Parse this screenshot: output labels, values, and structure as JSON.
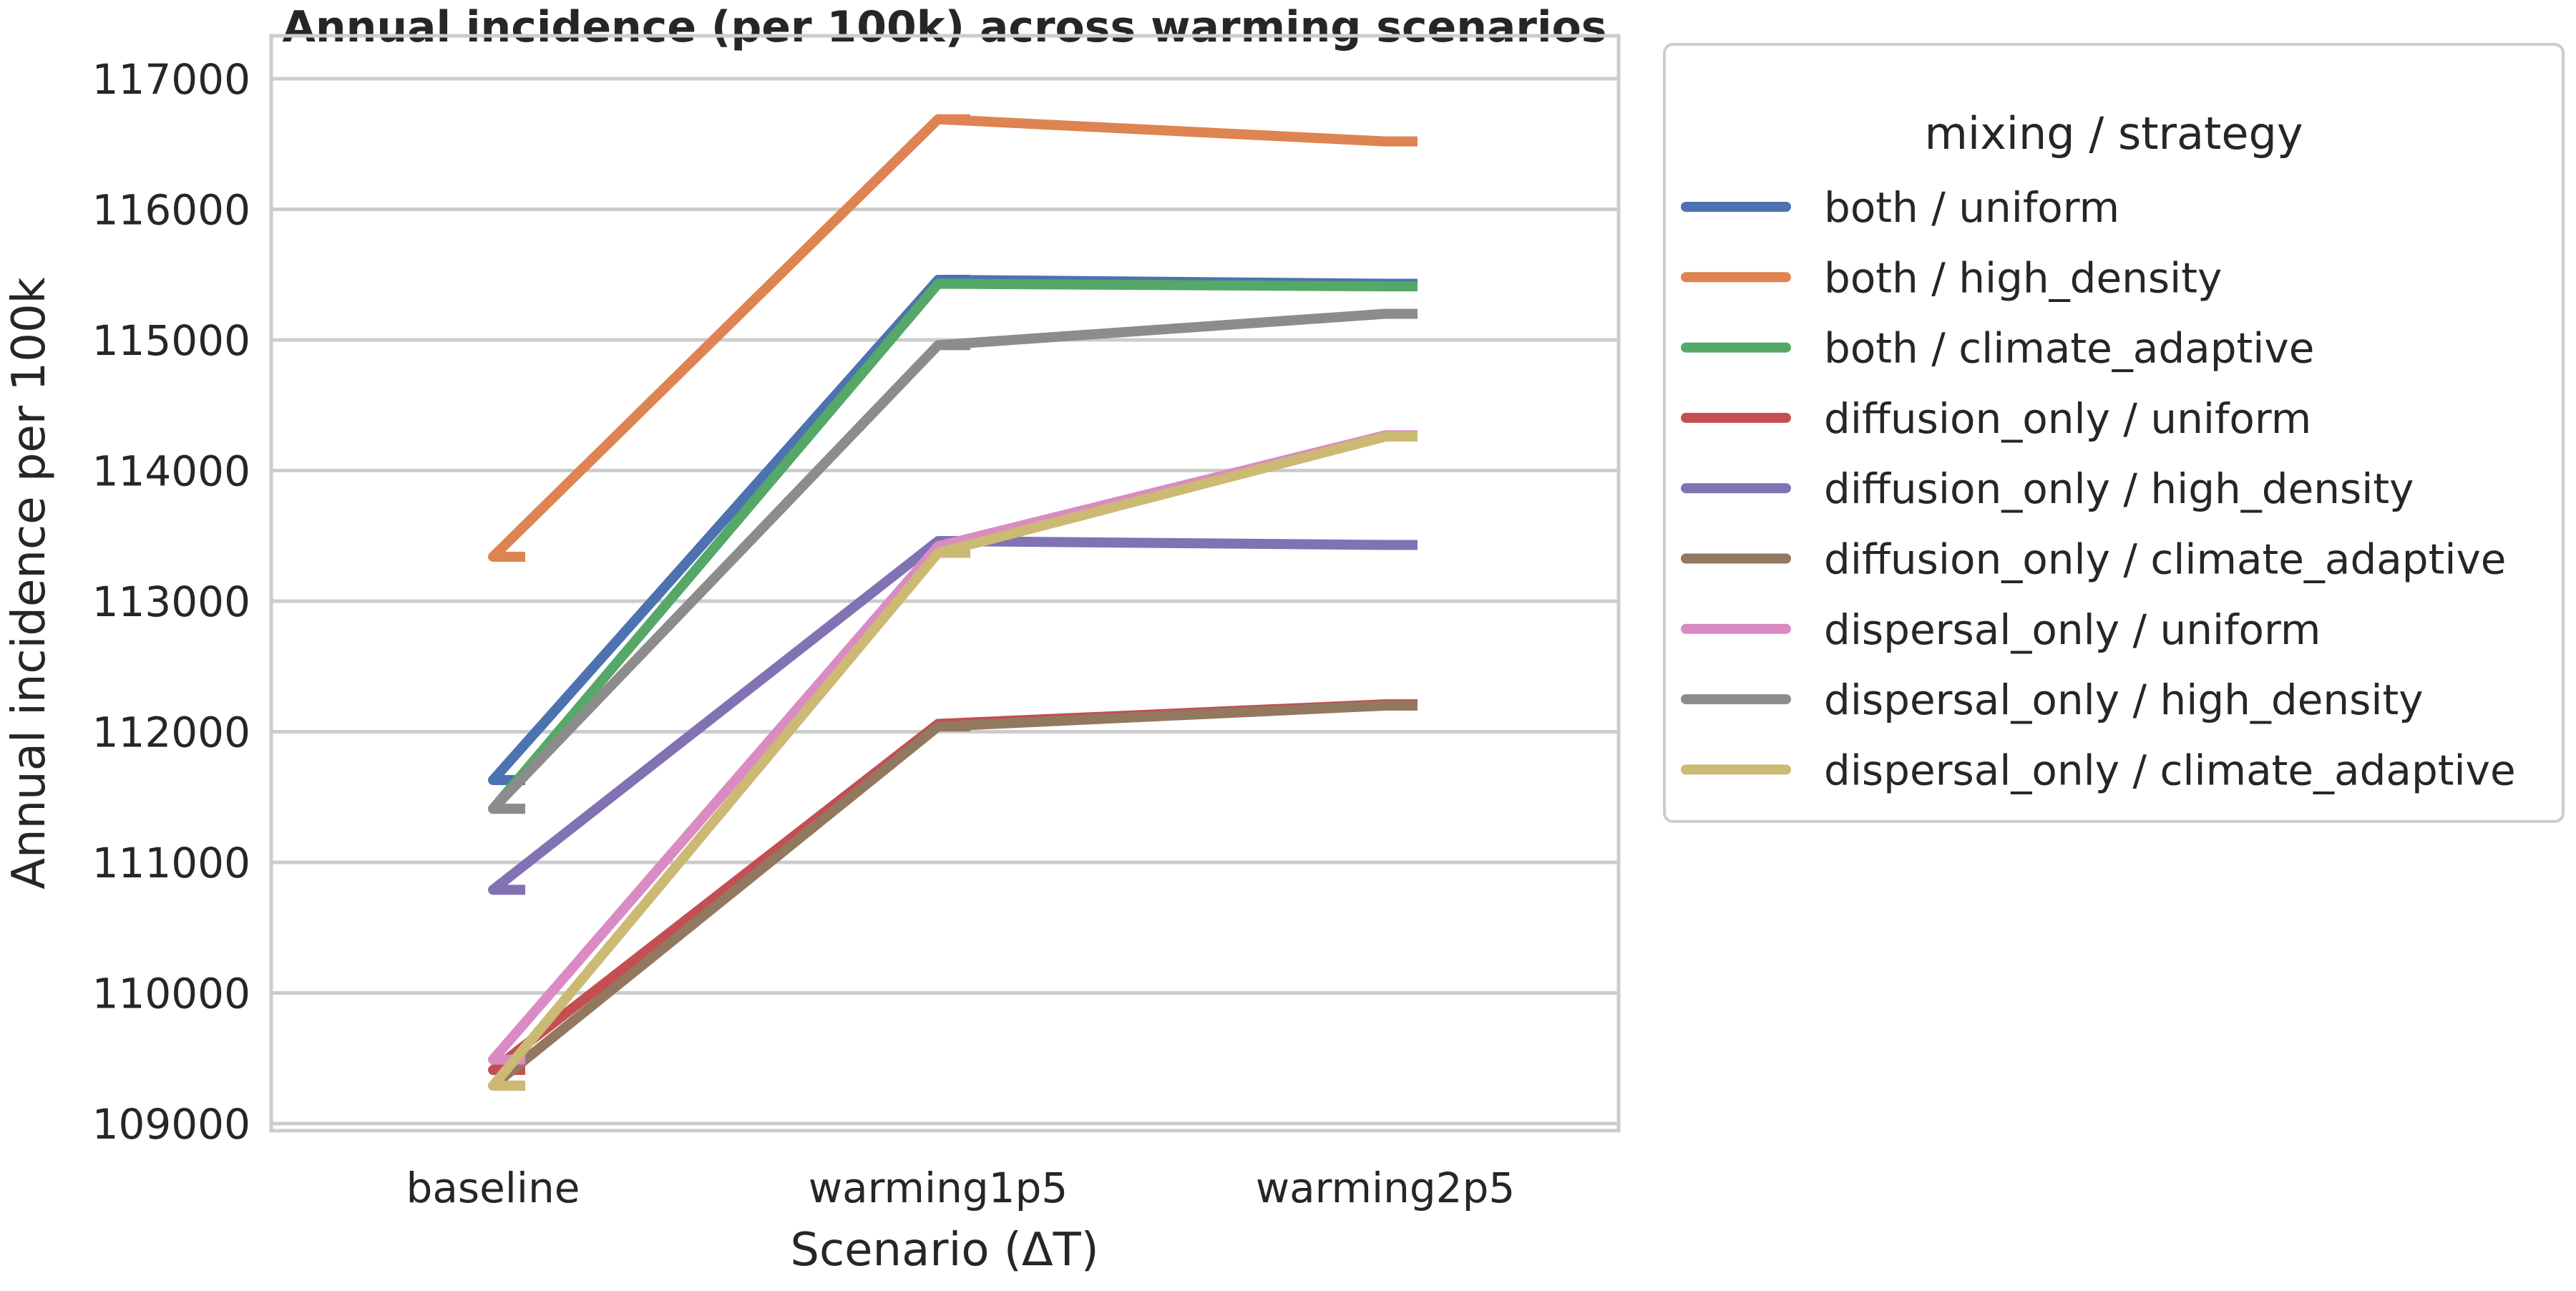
{
  "chart_data": {
    "type": "line",
    "title": "Annual incidence (per 100k) across warming scenarios",
    "xlabel": "Scenario (ΔT)",
    "ylabel": "Annual incidence per 100k",
    "categories": [
      "baseline",
      "warming1p5",
      "warming2p5"
    ],
    "ylim": [
      108900,
      117250
    ],
    "yticks": [
      109000,
      110000,
      111000,
      112000,
      113000,
      114000,
      115000,
      116000,
      117000
    ],
    "grid": true,
    "legend": {
      "title": "mixing / strategy",
      "placement": "outside-right"
    },
    "series": [
      {
        "name": "both / uniform",
        "color": "#4c72b0",
        "values": [
          111630,
          115460,
          115430
        ]
      },
      {
        "name": "both / high_density",
        "color": "#dd8452",
        "values": [
          113340,
          116690,
          116520
        ]
      },
      {
        "name": "both / climate_adaptive",
        "color": "#55a868",
        "values": [
          111410,
          115430,
          115410
        ]
      },
      {
        "name": "diffusion_only / uniform",
        "color": "#c44e52",
        "values": [
          109410,
          112060,
          112210
        ]
      },
      {
        "name": "diffusion_only / high_density",
        "color": "#8172b3",
        "values": [
          110790,
          113460,
          113430
        ]
      },
      {
        "name": "diffusion_only / climate_adaptive",
        "color": "#937860",
        "values": [
          109290,
          112040,
          112200
        ]
      },
      {
        "name": "dispersal_only / uniform",
        "color": "#da8bc3",
        "values": [
          109490,
          113420,
          114270
        ]
      },
      {
        "name": "dispersal_only / high_density",
        "color": "#8c8c8c",
        "values": [
          111410,
          114960,
          115200
        ]
      },
      {
        "name": "dispersal_only / climate_adaptive",
        "color": "#ccb974",
        "values": [
          109290,
          113370,
          114260
        ]
      }
    ]
  }
}
